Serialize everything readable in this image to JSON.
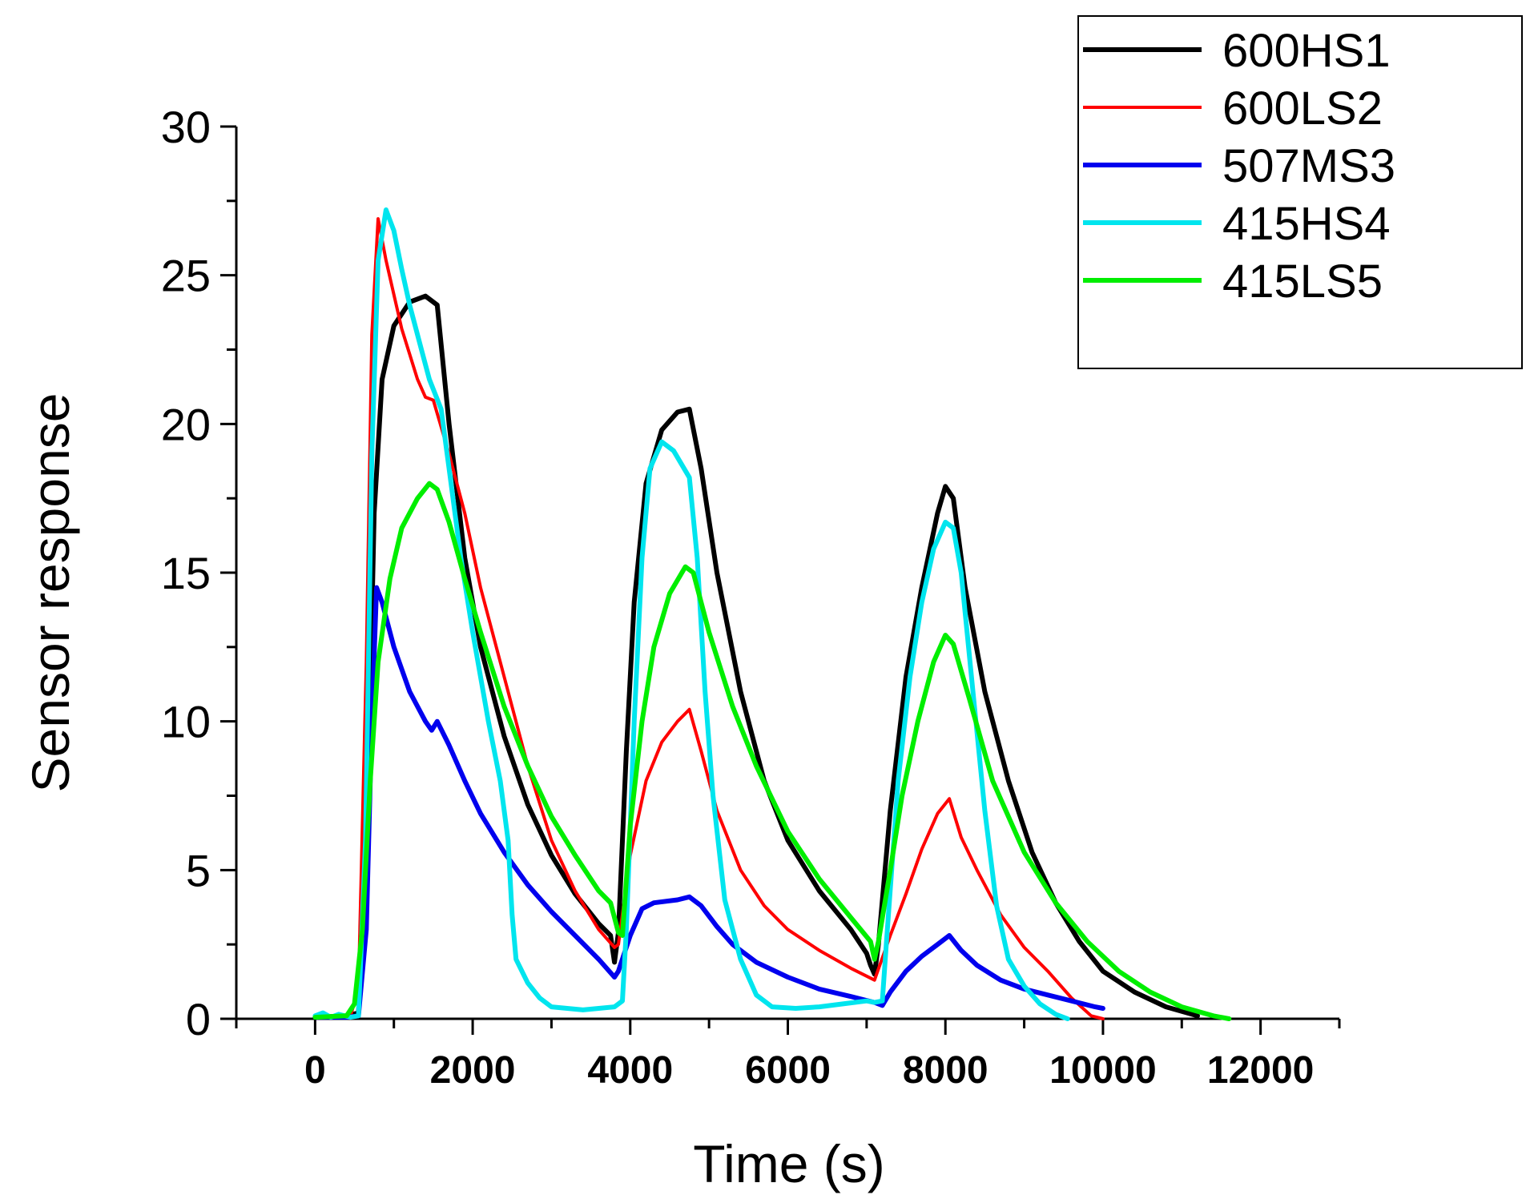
{
  "chart_data": {
    "type": "line",
    "title": "",
    "xlabel": "Time (s)",
    "ylabel": "Sensor response",
    "xlim": [
      -1000,
      13000
    ],
    "ylim": [
      0,
      30
    ],
    "xticks": [
      0,
      2000,
      4000,
      6000,
      8000,
      10000,
      12000
    ],
    "xtick_labels": [
      "0",
      "2000",
      "4000",
      "6000",
      "8000",
      "10000",
      "12000"
    ],
    "yticks": [
      0,
      5,
      10,
      15,
      20,
      25,
      30
    ],
    "ytick_labels": [
      "0",
      "5",
      "10",
      "15",
      "20",
      "25",
      "30"
    ],
    "grid": false,
    "legend_position": "top-right",
    "series": [
      {
        "name": "600HS1",
        "color": "#000000",
        "width": 6,
        "points": [
          [
            0,
            0.05
          ],
          [
            400,
            0.1
          ],
          [
            550,
            0.2
          ],
          [
            650,
            5
          ],
          [
            750,
            17
          ],
          [
            850,
            21.5
          ],
          [
            1000,
            23.3
          ],
          [
            1200,
            24.1
          ],
          [
            1400,
            24.3
          ],
          [
            1550,
            24
          ],
          [
            1700,
            20
          ],
          [
            1900,
            15.5
          ],
          [
            2100,
            12.5
          ],
          [
            2400,
            9.5
          ],
          [
            2700,
            7.2
          ],
          [
            3000,
            5.5
          ],
          [
            3300,
            4.2
          ],
          [
            3600,
            3.2
          ],
          [
            3750,
            2.8
          ],
          [
            3800,
            1.9
          ],
          [
            3850,
            2.9
          ],
          [
            3950,
            9
          ],
          [
            4050,
            14
          ],
          [
            4200,
            18
          ],
          [
            4400,
            19.8
          ],
          [
            4600,
            20.4
          ],
          [
            4750,
            20.5
          ],
          [
            4900,
            18.5
          ],
          [
            5100,
            15
          ],
          [
            5400,
            11
          ],
          [
            5700,
            8
          ],
          [
            6000,
            6
          ],
          [
            6400,
            4.3
          ],
          [
            6800,
            3
          ],
          [
            7000,
            2.2
          ],
          [
            7050,
            1.8
          ],
          [
            7100,
            1.5
          ],
          [
            7150,
            2.5
          ],
          [
            7300,
            7
          ],
          [
            7500,
            11.5
          ],
          [
            7700,
            14.5
          ],
          [
            7900,
            17
          ],
          [
            8000,
            17.9
          ],
          [
            8100,
            17.5
          ],
          [
            8250,
            14.5
          ],
          [
            8500,
            11
          ],
          [
            8800,
            8
          ],
          [
            9100,
            5.6
          ],
          [
            9400,
            3.9
          ],
          [
            9700,
            2.6
          ],
          [
            10000,
            1.6
          ],
          [
            10400,
            0.9
          ],
          [
            10800,
            0.4
          ],
          [
            11200,
            0.1
          ]
        ]
      },
      {
        "name": "600LS2",
        "color": "#ff0000",
        "width": 4,
        "points": [
          [
            0,
            0.05
          ],
          [
            450,
            0.1
          ],
          [
            550,
            1
          ],
          [
            650,
            12
          ],
          [
            720,
            23
          ],
          [
            800,
            26.9
          ],
          [
            900,
            25.5
          ],
          [
            1100,
            23.2
          ],
          [
            1300,
            21.5
          ],
          [
            1400,
            20.9
          ],
          [
            1500,
            20.8
          ],
          [
            1700,
            19
          ],
          [
            1900,
            17
          ],
          [
            2100,
            14.5
          ],
          [
            2400,
            11.5
          ],
          [
            2700,
            8.5
          ],
          [
            3000,
            6
          ],
          [
            3300,
            4.3
          ],
          [
            3600,
            3
          ],
          [
            3800,
            2.4
          ],
          [
            3850,
            2.5
          ],
          [
            4000,
            5.5
          ],
          [
            4200,
            8
          ],
          [
            4400,
            9.3
          ],
          [
            4600,
            10
          ],
          [
            4750,
            10.4
          ],
          [
            4900,
            9
          ],
          [
            5100,
            7
          ],
          [
            5400,
            5
          ],
          [
            5700,
            3.8
          ],
          [
            6000,
            3
          ],
          [
            6400,
            2.3
          ],
          [
            6800,
            1.7
          ],
          [
            7100,
            1.3
          ],
          [
            7300,
            2.8
          ],
          [
            7500,
            4.2
          ],
          [
            7700,
            5.7
          ],
          [
            7900,
            6.9
          ],
          [
            8050,
            7.4
          ],
          [
            8200,
            6.1
          ],
          [
            8400,
            5
          ],
          [
            8700,
            3.5
          ],
          [
            9000,
            2.4
          ],
          [
            9300,
            1.6
          ],
          [
            9600,
            0.7
          ],
          [
            9850,
            0.1
          ],
          [
            10000,
            0
          ]
        ]
      },
      {
        "name": "507MS3",
        "color": "#0000ee",
        "width": 6,
        "points": [
          [
            0,
            0.05
          ],
          [
            400,
            0.05
          ],
          [
            550,
            0.1
          ],
          [
            650,
            3
          ],
          [
            720,
            10
          ],
          [
            780,
            14.5
          ],
          [
            850,
            14
          ],
          [
            1000,
            12.5
          ],
          [
            1200,
            11
          ],
          [
            1400,
            10
          ],
          [
            1480,
            9.7
          ],
          [
            1550,
            10
          ],
          [
            1700,
            9.2
          ],
          [
            1900,
            8
          ],
          [
            2100,
            6.9
          ],
          [
            2400,
            5.6
          ],
          [
            2700,
            4.5
          ],
          [
            3000,
            3.6
          ],
          [
            3300,
            2.8
          ],
          [
            3600,
            2
          ],
          [
            3800,
            1.4
          ],
          [
            3850,
            1.6
          ],
          [
            4000,
            2.8
          ],
          [
            4150,
            3.7
          ],
          [
            4300,
            3.9
          ],
          [
            4600,
            4
          ],
          [
            4750,
            4.1
          ],
          [
            4900,
            3.8
          ],
          [
            5100,
            3.1
          ],
          [
            5300,
            2.5
          ],
          [
            5600,
            1.9
          ],
          [
            6000,
            1.4
          ],
          [
            6400,
            1
          ],
          [
            6800,
            0.75
          ],
          [
            7100,
            0.55
          ],
          [
            7200,
            0.45
          ],
          [
            7300,
            0.9
          ],
          [
            7500,
            1.6
          ],
          [
            7700,
            2.1
          ],
          [
            7900,
            2.5
          ],
          [
            8050,
            2.8
          ],
          [
            8200,
            2.3
          ],
          [
            8400,
            1.8
          ],
          [
            8700,
            1.3
          ],
          [
            9000,
            1
          ],
          [
            9300,
            0.8
          ],
          [
            9600,
            0.6
          ],
          [
            9900,
            0.4
          ],
          [
            10000,
            0.35
          ]
        ]
      },
      {
        "name": "415HS4",
        "color": "#00e5ee",
        "width": 6,
        "points": [
          [
            0,
            0.1
          ],
          [
            100,
            0.2
          ],
          [
            200,
            0.05
          ],
          [
            300,
            0.15
          ],
          [
            450,
            0.05
          ],
          [
            550,
            0.1
          ],
          [
            640,
            6
          ],
          [
            720,
            19
          ],
          [
            800,
            25.5
          ],
          [
            900,
            27.2
          ],
          [
            1000,
            26.5
          ],
          [
            1100,
            25.2
          ],
          [
            1200,
            24
          ],
          [
            1350,
            22.5
          ],
          [
            1450,
            21.5
          ],
          [
            1600,
            20.5
          ],
          [
            1700,
            18.5
          ],
          [
            1850,
            15.5
          ],
          [
            2000,
            13
          ],
          [
            2200,
            10
          ],
          [
            2350,
            8
          ],
          [
            2450,
            6
          ],
          [
            2500,
            3.5
          ],
          [
            2550,
            2
          ],
          [
            2700,
            1.2
          ],
          [
            2850,
            0.7
          ],
          [
            3000,
            0.4
          ],
          [
            3200,
            0.35
          ],
          [
            3400,
            0.3
          ],
          [
            3600,
            0.35
          ],
          [
            3800,
            0.4
          ],
          [
            3900,
            0.6
          ],
          [
            3950,
            3
          ],
          [
            4050,
            10
          ],
          [
            4150,
            15.5
          ],
          [
            4250,
            18.5
          ],
          [
            4400,
            19.4
          ],
          [
            4550,
            19.1
          ],
          [
            4750,
            18.2
          ],
          [
            4850,
            15.5
          ],
          [
            4950,
            11
          ],
          [
            5050,
            7.5
          ],
          [
            5200,
            4
          ],
          [
            5400,
            2
          ],
          [
            5600,
            0.8
          ],
          [
            5800,
            0.4
          ],
          [
            6100,
            0.35
          ],
          [
            6400,
            0.4
          ],
          [
            6700,
            0.5
          ],
          [
            7000,
            0.6
          ],
          [
            7100,
            0.55
          ],
          [
            7200,
            0.6
          ],
          [
            7250,
            2.5
          ],
          [
            7400,
            8
          ],
          [
            7550,
            11.5
          ],
          [
            7700,
            14
          ],
          [
            7850,
            15.8
          ],
          [
            8000,
            16.7
          ],
          [
            8100,
            16.5
          ],
          [
            8200,
            15
          ],
          [
            8350,
            11
          ],
          [
            8500,
            7
          ],
          [
            8650,
            3.8
          ],
          [
            8800,
            2
          ],
          [
            9000,
            1.1
          ],
          [
            9200,
            0.5
          ],
          [
            9400,
            0.15
          ],
          [
            9550,
            0
          ]
        ]
      },
      {
        "name": "415LS5",
        "color": "#00ee00",
        "width": 6,
        "points": [
          [
            0,
            0.05
          ],
          [
            400,
            0.1
          ],
          [
            500,
            0.5
          ],
          [
            600,
            3
          ],
          [
            700,
            8
          ],
          [
            800,
            12
          ],
          [
            950,
            14.8
          ],
          [
            1100,
            16.5
          ],
          [
            1300,
            17.5
          ],
          [
            1450,
            18
          ],
          [
            1550,
            17.8
          ],
          [
            1700,
            16.7
          ],
          [
            1900,
            14.8
          ],
          [
            2100,
            13
          ],
          [
            2400,
            10.5
          ],
          [
            2700,
            8.5
          ],
          [
            3000,
            6.8
          ],
          [
            3300,
            5.5
          ],
          [
            3600,
            4.3
          ],
          [
            3750,
            3.9
          ],
          [
            3850,
            2.9
          ],
          [
            3900,
            2.8
          ],
          [
            4000,
            6.5
          ],
          [
            4150,
            10
          ],
          [
            4300,
            12.5
          ],
          [
            4500,
            14.3
          ],
          [
            4700,
            15.2
          ],
          [
            4800,
            15
          ],
          [
            5000,
            13
          ],
          [
            5300,
            10.5
          ],
          [
            5600,
            8.5
          ],
          [
            6000,
            6.3
          ],
          [
            6400,
            4.7
          ],
          [
            6800,
            3.4
          ],
          [
            7050,
            2.6
          ],
          [
            7100,
            2
          ],
          [
            7150,
            2.6
          ],
          [
            7300,
            5
          ],
          [
            7450,
            7.5
          ],
          [
            7650,
            10
          ],
          [
            7850,
            12
          ],
          [
            8000,
            12.9
          ],
          [
            8100,
            12.6
          ],
          [
            8300,
            10.8
          ],
          [
            8600,
            8
          ],
          [
            9000,
            5.6
          ],
          [
            9400,
            3.9
          ],
          [
            9800,
            2.6
          ],
          [
            10200,
            1.6
          ],
          [
            10600,
            0.9
          ],
          [
            11000,
            0.4
          ],
          [
            11400,
            0.1
          ],
          [
            11600,
            0
          ]
        ]
      }
    ]
  }
}
